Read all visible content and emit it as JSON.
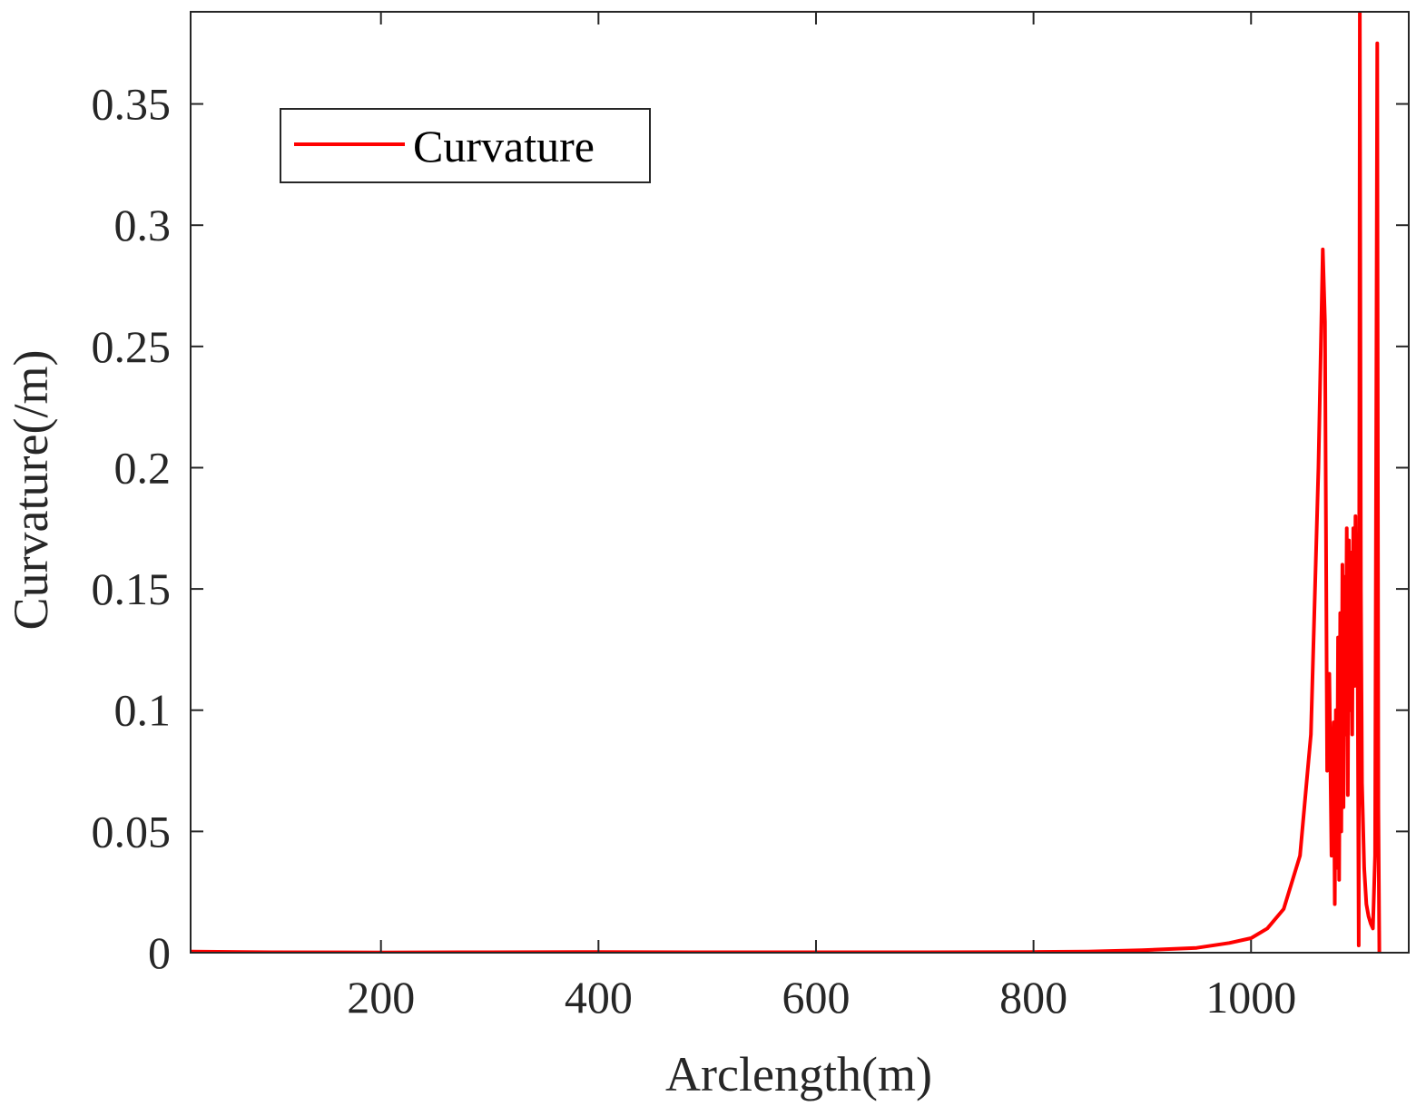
{
  "chart_data": {
    "type": "line",
    "title": "",
    "xlabel": "Arclength(m)",
    "ylabel": "Curvature(/m)",
    "xlim": [
      25,
      1145
    ],
    "ylim": [
      0,
      0.388
    ],
    "xticks": [
      200,
      400,
      600,
      800,
      1000
    ],
    "xtick_labels": [
      "200",
      "400",
      "600",
      "800",
      "1000"
    ],
    "yticks": [
      0,
      0.05,
      0.1,
      0.15,
      0.2,
      0.25,
      0.3,
      0.35
    ],
    "ytick_labels": [
      "0",
      "0.05",
      "0.1",
      "0.15",
      "0.2",
      "0.25",
      "0.3",
      "0.35"
    ],
    "grid": false,
    "legend": {
      "position": "top-left",
      "entries": [
        "Curvature"
      ]
    },
    "colors": {
      "series": "#ff0000",
      "axis": "#262626"
    },
    "series": [
      {
        "name": "Curvature",
        "x": [
          25,
          100,
          200,
          300,
          400,
          500,
          600,
          700,
          800,
          850,
          900,
          950,
          980,
          1000,
          1015,
          1030,
          1045,
          1055,
          1062,
          1066,
          1068,
          1070,
          1072,
          1074,
          1076,
          1077,
          1078,
          1079,
          1080,
          1081,
          1082,
          1083,
          1084,
          1085,
          1086,
          1087,
          1088,
          1089,
          1090,
          1091,
          1092,
          1093,
          1094,
          1095,
          1096,
          1097,
          1098,
          1099,
          1100,
          1101,
          1102,
          1104,
          1106,
          1108,
          1110,
          1112,
          1114,
          1116,
          1117,
          1118
        ],
        "y": [
          0.0005,
          0.0002,
          0.0001,
          0.0002,
          0.0003,
          0.0002,
          0.0002,
          0.0002,
          0.0003,
          0.0005,
          0.001,
          0.002,
          0.004,
          0.006,
          0.01,
          0.018,
          0.04,
          0.09,
          0.2,
          0.29,
          0.26,
          0.075,
          0.115,
          0.04,
          0.095,
          0.02,
          0.1,
          0.035,
          0.13,
          0.03,
          0.14,
          0.05,
          0.16,
          0.06,
          0.155,
          0.09,
          0.175,
          0.065,
          0.17,
          0.1,
          0.165,
          0.09,
          0.175,
          0.11,
          0.18,
          0.11,
          0.12,
          0.003,
          0.388,
          0.15,
          0.07,
          0.035,
          0.02,
          0.015,
          0.012,
          0.01,
          0.04,
          0.375,
          0.06,
          0.0
        ]
      }
    ]
  }
}
